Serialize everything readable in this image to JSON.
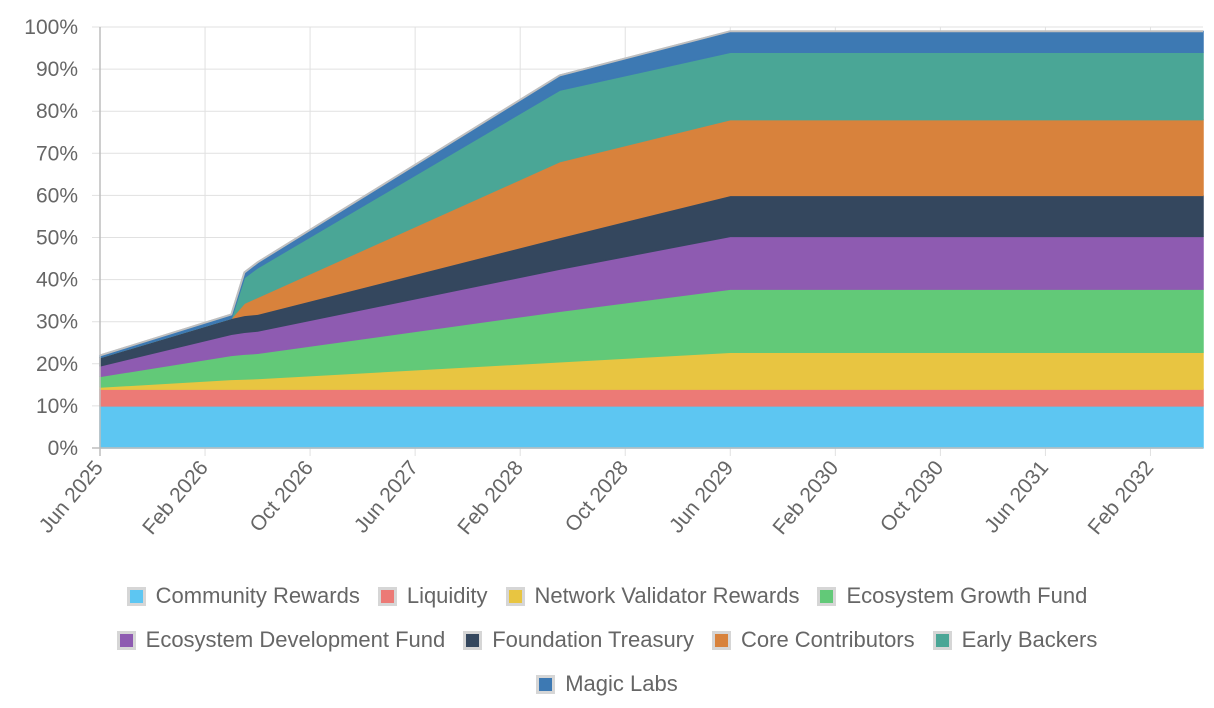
{
  "chart_data": {
    "type": "area",
    "stacked": true,
    "y_ticks": [
      "0%",
      "10%",
      "20%",
      "30%",
      "40%",
      "50%",
      "60%",
      "70%",
      "80%",
      "90%",
      "100%"
    ],
    "ylim": [
      0,
      100
    ],
    "x_ticks": [
      "Jun 2025",
      "Feb 2026",
      "Oct 2026",
      "Jun 2027",
      "Feb 2028",
      "Oct 2028",
      "Jun 2029",
      "Feb 2030",
      "Oct 2030",
      "Jun 2031",
      "Feb 2032"
    ],
    "x": [
      "Jun 2025",
      "Apr 2026",
      "May 2026",
      "Jun 2026",
      "May 2028",
      "Jun 2029",
      "Jun 2032"
    ],
    "xlim": [
      "Jun 2025",
      "Jun 2032"
    ],
    "grid": true,
    "legend_position": "bottom",
    "series": [
      {
        "name": "Community Rewards",
        "color": "#5dc6f2",
        "values": [
          10,
          10,
          10,
          10,
          10,
          10,
          10
        ]
      },
      {
        "name": "Liquidity",
        "color": "#ec7a76",
        "values": [
          4,
          4,
          4,
          4,
          4,
          4,
          4
        ]
      },
      {
        "name": "Network Validator Rewards",
        "color": "#e8c541",
        "values": [
          0.5,
          2.3,
          2.4,
          2.5,
          6.5,
          8.75,
          8.75
        ]
      },
      {
        "name": "Ecosystem Growth Fund",
        "color": "#62c978",
        "values": [
          2.5,
          5.7,
          5.9,
          6.0,
          12.0,
          15.0,
          15.0
        ]
      },
      {
        "name": "Ecosystem Development Fund",
        "color": "#8e5bb1",
        "values": [
          2.5,
          5.0,
          5.2,
          5.3,
          10.0,
          12.5,
          12.5
        ]
      },
      {
        "name": "Foundation Treasury",
        "color": "#34475e",
        "values": [
          2.0,
          3.8,
          4.0,
          4.0,
          7.5,
          9.75,
          9.75
        ]
      },
      {
        "name": "Core Contributors",
        "color": "#d8823c",
        "values": [
          0,
          0,
          2.9,
          4.0,
          18.0,
          18.0,
          18.0
        ]
      },
      {
        "name": "Early Backers",
        "color": "#4aa696",
        "values": [
          0,
          0,
          6.1,
          7.0,
          17.0,
          16.0,
          16.0
        ]
      },
      {
        "name": "Magic Labs",
        "color": "#3d79b3",
        "values": [
          0.5,
          0.9,
          1.2,
          1.3,
          3.5,
          5.0,
          5.0
        ]
      }
    ]
  }
}
